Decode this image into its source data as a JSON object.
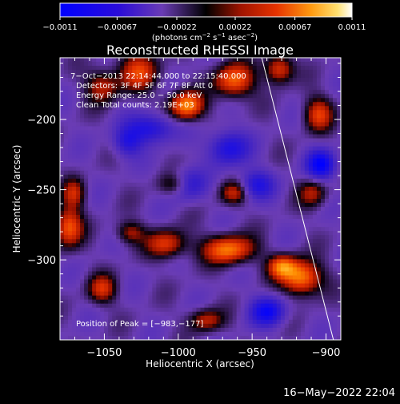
{
  "chart_data": {
    "type": "heatmap",
    "title": "Reconstructed RHESSI Image",
    "xlabel": "Heliocentric X (arcsec)",
    "ylabel": "Heliocentric Y (arcsec)",
    "xlim": [
      -1080,
      -890
    ],
    "ylim": [
      -357,
      -156
    ],
    "xticks": [
      -1050,
      -1000,
      -950,
      -900
    ],
    "xtick_labels": [
      "−1050",
      "−1000",
      "−950",
      "−900"
    ],
    "yticks": [
      -200,
      -250,
      -300
    ],
    "ytick_labels": [
      "−200",
      "−250",
      "−300"
    ],
    "colorbar": {
      "range": [
        -0.0011,
        0.0011
      ],
      "ticks": [
        -0.0011,
        -0.00067,
        -0.00022,
        0.00022,
        0.00067,
        0.0011
      ],
      "tick_labels": [
        "−0.0011",
        "−0.00067",
        "−0.00022",
        "0.00022",
        "0.00067",
        "0.0011"
      ],
      "unit_main": "(photons cm",
      "unit_e1": "−2",
      "unit_mid1": " s",
      "unit_e2": "−1",
      "unit_mid2": " asec",
      "unit_e3": "−2",
      "unit_end": ")"
    },
    "limb": {
      "x1": -943.5,
      "y1": -156,
      "x2": -895,
      "y2": -357
    },
    "peak": {
      "x": -983,
      "y": -177
    },
    "annotations": {
      "time_range": "7−Oct−2013 22:14:44.000 to 22:15:40.000",
      "detectors": "Detectors: 3F 4F 5F 6F 7F 8F  Att 0",
      "energy": "Energy Range: 25.0 − 50.0 keV",
      "clean": "Clean     Total counts: 2.19E+03",
      "peak_label": "Position of Peak = [−983,−177]"
    }
  },
  "footer": {
    "timestamp": "16−May−2022 22:04"
  },
  "colors": {
    "background": "#000000",
    "foreground": "#ffffff",
    "map_stops": [
      "#0000ff",
      "#4b1ec8",
      "#6a3cb4",
      "#000000",
      "#a01400",
      "#e63200",
      "#ff8c00",
      "#ffdc50",
      "#ffffff"
    ]
  }
}
